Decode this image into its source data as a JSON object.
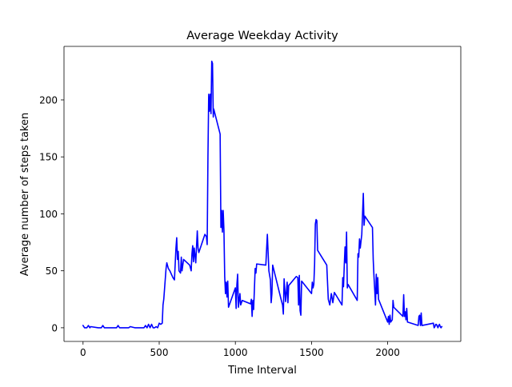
{
  "chart_data": {
    "type": "line",
    "title": "Average Weekday Activity",
    "xlabel": "Time Interval",
    "ylabel": "Average number of steps taken",
    "xlim": [
      -125,
      2480
    ],
    "ylim": [
      -12,
      247
    ],
    "xticks": [
      0,
      500,
      1000,
      1500,
      2000
    ],
    "yticks": [
      0,
      50,
      100,
      150,
      200
    ],
    "grid": false,
    "legend": "none",
    "series": [
      {
        "color": "#0000ff",
        "points": [
          [
            0,
            2
          ],
          [
            10,
            0
          ],
          [
            25,
            0
          ],
          [
            35,
            2
          ],
          [
            45,
            0
          ],
          [
            50,
            1
          ],
          [
            100,
            0
          ],
          [
            120,
            0
          ],
          [
            130,
            2
          ],
          [
            140,
            0
          ],
          [
            200,
            0
          ],
          [
            220,
            0
          ],
          [
            230,
            2
          ],
          [
            240,
            0
          ],
          [
            300,
            0
          ],
          [
            310,
            1
          ],
          [
            340,
            0
          ],
          [
            400,
            0
          ],
          [
            410,
            2
          ],
          [
            420,
            0
          ],
          [
            430,
            3
          ],
          [
            440,
            0
          ],
          [
            450,
            3
          ],
          [
            460,
            0
          ],
          [
            470,
            0
          ],
          [
            480,
            1
          ],
          [
            490,
            0
          ],
          [
            500,
            4
          ],
          [
            510,
            3
          ],
          [
            520,
            4
          ],
          [
            525,
            20
          ],
          [
            530,
            25
          ],
          [
            545,
            52
          ],
          [
            550,
            57
          ],
          [
            560,
            52
          ],
          [
            570,
            50
          ],
          [
            580,
            47
          ],
          [
            590,
            44
          ],
          [
            600,
            42
          ],
          [
            610,
            70
          ],
          [
            615,
            79
          ],
          [
            620,
            60
          ],
          [
            625,
            67
          ],
          [
            630,
            50
          ],
          [
            640,
            48
          ],
          [
            645,
            62
          ],
          [
            650,
            50
          ],
          [
            660,
            60
          ],
          [
            700,
            55
          ],
          [
            710,
            50
          ],
          [
            715,
            65
          ],
          [
            720,
            72
          ],
          [
            725,
            58
          ],
          [
            730,
            70
          ],
          [
            740,
            57
          ],
          [
            750,
            85
          ],
          [
            755,
            70
          ],
          [
            760,
            66
          ],
          [
            800,
            82
          ],
          [
            810,
            80
          ],
          [
            815,
            73
          ],
          [
            820,
            150
          ],
          [
            825,
            205
          ],
          [
            830,
            190
          ],
          [
            835,
            205
          ],
          [
            840,
            188
          ],
          [
            845,
            234
          ],
          [
            850,
            232
          ],
          [
            855,
            185
          ],
          [
            858,
            192
          ],
          [
            900,
            170
          ],
          [
            905,
            88
          ],
          [
            910,
            103
          ],
          [
            915,
            84
          ],
          [
            920,
            103
          ],
          [
            925,
            86
          ],
          [
            930,
            45
          ],
          [
            935,
            30
          ],
          [
            940,
            40
          ],
          [
            945,
            27
          ],
          [
            950,
            41
          ],
          [
            955,
            18
          ],
          [
            1000,
            35
          ],
          [
            1005,
            17
          ],
          [
            1010,
            38
          ],
          [
            1015,
            47
          ],
          [
            1020,
            18
          ],
          [
            1030,
            30
          ],
          [
            1035,
            20
          ],
          [
            1045,
            24
          ],
          [
            1100,
            21
          ],
          [
            1105,
            25
          ],
          [
            1110,
            10
          ],
          [
            1115,
            24
          ],
          [
            1120,
            16
          ],
          [
            1130,
            52
          ],
          [
            1135,
            48
          ],
          [
            1140,
            56
          ],
          [
            1200,
            55
          ],
          [
            1210,
            82
          ],
          [
            1220,
            50
          ],
          [
            1225,
            46
          ],
          [
            1230,
            42
          ],
          [
            1235,
            22
          ],
          [
            1240,
            30
          ],
          [
            1245,
            55
          ],
          [
            1300,
            25
          ],
          [
            1310,
            20
          ],
          [
            1315,
            12
          ],
          [
            1320,
            43
          ],
          [
            1330,
            23
          ],
          [
            1340,
            40
          ],
          [
            1345,
            22
          ],
          [
            1350,
            37
          ],
          [
            1400,
            45
          ],
          [
            1410,
            44
          ],
          [
            1415,
            20
          ],
          [
            1420,
            46
          ],
          [
            1425,
            15
          ],
          [
            1430,
            11
          ],
          [
            1435,
            41
          ],
          [
            1500,
            30
          ],
          [
            1505,
            40
          ],
          [
            1510,
            35
          ],
          [
            1515,
            38
          ],
          [
            1520,
            55
          ],
          [
            1525,
            91
          ],
          [
            1530,
            95
          ],
          [
            1535,
            94
          ],
          [
            1540,
            68
          ],
          [
            1600,
            55
          ],
          [
            1610,
            25
          ],
          [
            1620,
            20
          ],
          [
            1630,
            30
          ],
          [
            1640,
            22
          ],
          [
            1650,
            31
          ],
          [
            1700,
            20
          ],
          [
            1705,
            44
          ],
          [
            1710,
            36
          ],
          [
            1715,
            55
          ],
          [
            1720,
            71
          ],
          [
            1725,
            57
          ],
          [
            1730,
            84
          ],
          [
            1735,
            35
          ],
          [
            1740,
            38
          ],
          [
            1800,
            24
          ],
          [
            1805,
            65
          ],
          [
            1810,
            62
          ],
          [
            1815,
            78
          ],
          [
            1820,
            70
          ],
          [
            1830,
            82
          ],
          [
            1840,
            118
          ],
          [
            1845,
            90
          ],
          [
            1850,
            98
          ],
          [
            1900,
            88
          ],
          [
            1905,
            60
          ],
          [
            1910,
            45
          ],
          [
            1915,
            33
          ],
          [
            1920,
            20
          ],
          [
            1925,
            47
          ],
          [
            1930,
            30
          ],
          [
            1935,
            44
          ],
          [
            1940,
            25
          ],
          [
            2000,
            5
          ],
          [
            2005,
            10
          ],
          [
            2010,
            3
          ],
          [
            2015,
            11
          ],
          [
            2020,
            5
          ],
          [
            2030,
            7
          ],
          [
            2035,
            24
          ],
          [
            2040,
            18
          ],
          [
            2100,
            10
          ],
          [
            2105,
            29
          ],
          [
            2110,
            10
          ],
          [
            2115,
            14
          ],
          [
            2120,
            7
          ],
          [
            2125,
            17
          ],
          [
            2130,
            5
          ],
          [
            2200,
            2
          ],
          [
            2205,
            10
          ],
          [
            2210,
            11
          ],
          [
            2215,
            2
          ],
          [
            2220,
            13
          ],
          [
            2225,
            2
          ],
          [
            2300,
            4
          ],
          [
            2305,
            0
          ],
          [
            2310,
            1
          ],
          [
            2315,
            3
          ],
          [
            2320,
            3
          ],
          [
            2330,
            0
          ],
          [
            2335,
            2
          ],
          [
            2340,
            3
          ],
          [
            2345,
            1
          ],
          [
            2350,
            0
          ],
          [
            2355,
            1
          ]
        ]
      }
    ]
  }
}
